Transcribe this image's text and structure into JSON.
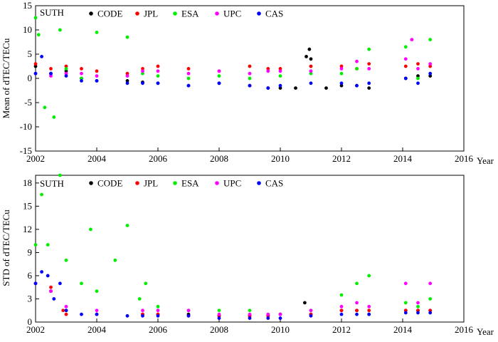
{
  "series_colors": {
    "CODE": "#000000",
    "JPL": "#ff0000",
    "ESA": "#00ee00",
    "UPC": "#ff00ff",
    "CAS": "#0000ff"
  },
  "chart_data": [
    {
      "type": "scatter",
      "station": "SUTH",
      "xlabel": "Year",
      "ylabel": "Mean of dTEC/TECu",
      "xlim": [
        2002,
        2016
      ],
      "ylim": [
        -15,
        15
      ],
      "x_ticks": [
        2002,
        2004,
        2006,
        2008,
        2010,
        2012,
        2014,
        2016
      ],
      "y_ticks": [
        -15,
        -10,
        -5,
        0,
        5,
        10,
        15
      ],
      "legend": [
        "CODE",
        "JPL",
        "ESA",
        "UPC",
        "CAS"
      ],
      "series": [
        {
          "name": "CODE",
          "x": [
            2002.0,
            2002.5,
            2003.0,
            2003.5,
            2004.0,
            2005.0,
            2005.5,
            2006.0,
            2007.0,
            2008.0,
            2009.0,
            2009.6,
            2010.0,
            2010.5,
            2010.85,
            2010.95,
            2011.0,
            2011.5,
            2012.0,
            2012.5,
            2012.9,
            2014.1,
            2014.5,
            2014.9
          ],
          "y": [
            2.5,
            1.0,
            1.5,
            0.0,
            -0.5,
            -0.5,
            -0.8,
            -1.0,
            -1.5,
            -1.0,
            -1.5,
            -2.0,
            -2.0,
            -2.0,
            4.5,
            6.0,
            4.0,
            -2.0,
            -1.5,
            -1.5,
            -2.0,
            0.0,
            0.5,
            0.5
          ]
        },
        {
          "name": "JPL",
          "x": [
            2002.0,
            2002.5,
            2003.0,
            2003.5,
            2004.0,
            2005.0,
            2005.5,
            2006.0,
            2007.0,
            2008.0,
            2009.0,
            2009.6,
            2010.0,
            2011.0,
            2012.0,
            2012.5,
            2012.9,
            2014.1,
            2014.5,
            2014.9
          ],
          "y": [
            3.0,
            2.0,
            2.5,
            2.0,
            1.5,
            1.0,
            2.0,
            2.5,
            2.0,
            1.5,
            2.5,
            2.0,
            2.0,
            2.5,
            2.5,
            2.0,
            3.0,
            2.5,
            3.0,
            2.5
          ]
        },
        {
          "name": "ESA",
          "x": [
            2002.0,
            2002.1,
            2002.3,
            2002.6,
            2002.8,
            2003.0,
            2003.5,
            2004.0,
            2005.0,
            2005.5,
            2006.0,
            2007.0,
            2008.0,
            2009.0,
            2010.0,
            2011.0,
            2012.0,
            2012.5,
            2012.9,
            2014.1,
            2014.5,
            2014.9
          ],
          "y": [
            12.5,
            9.0,
            -6.0,
            -8.0,
            10.0,
            2.0,
            0.0,
            9.5,
            8.5,
            1.0,
            0.5,
            0.0,
            0.5,
            0.0,
            0.5,
            1.0,
            1.0,
            2.0,
            6.0,
            6.5,
            0.0,
            8.0
          ]
        },
        {
          "name": "UPC",
          "x": [
            2002.0,
            2002.5,
            2003.0,
            2003.5,
            2004.0,
            2005.0,
            2005.5,
            2006.0,
            2007.0,
            2008.0,
            2009.0,
            2009.6,
            2010.0,
            2011.0,
            2012.0,
            2012.5,
            2012.9,
            2014.1,
            2014.3,
            2014.5,
            2014.9
          ],
          "y": [
            1.0,
            0.5,
            1.0,
            1.0,
            0.5,
            0.5,
            1.5,
            1.5,
            1.0,
            1.5,
            1.0,
            1.5,
            1.5,
            1.5,
            2.0,
            3.5,
            2.0,
            4.0,
            8.0,
            2.0,
            3.0
          ]
        },
        {
          "name": "CAS",
          "x": [
            2002.0,
            2002.2,
            2002.5,
            2003.0,
            2003.5,
            2004.0,
            2005.0,
            2005.5,
            2006.0,
            2007.0,
            2008.0,
            2009.0,
            2009.6,
            2010.0,
            2011.0,
            2012.0,
            2012.5,
            2012.9,
            2014.1,
            2014.5,
            2014.9
          ],
          "y": [
            1.0,
            4.5,
            1.0,
            0.5,
            -0.5,
            -0.5,
            -1.0,
            -1.0,
            -1.0,
            -1.5,
            -1.0,
            -1.5,
            -2.0,
            -1.5,
            -1.0,
            -1.0,
            -1.5,
            -1.0,
            0.0,
            -1.0,
            1.0
          ]
        }
      ]
    },
    {
      "type": "scatter",
      "station": "SUTH",
      "xlabel": "Year",
      "ylabel": "STD of dTEC/TECu",
      "xlim": [
        2002,
        2016
      ],
      "ylim": [
        0,
        19
      ],
      "x_ticks": [
        2002,
        2004,
        2006,
        2008,
        2010,
        2012,
        2014,
        2016
      ],
      "y_ticks": [
        0,
        3,
        6,
        9,
        12,
        15,
        18
      ],
      "legend": [
        "CODE",
        "JPL",
        "ESA",
        "UPC",
        "CAS"
      ],
      "series": [
        {
          "name": "CODE",
          "x": [
            2002.0,
            2002.5,
            2003.0,
            2004.0,
            2005.5,
            2006.0,
            2007.0,
            2008.0,
            2009.0,
            2009.6,
            2010.0,
            2010.8,
            2011.0,
            2012.0,
            2012.5,
            2012.9,
            2014.1,
            2014.5,
            2014.9
          ],
          "y": [
            5.0,
            4.0,
            1.5,
            1.0,
            1.0,
            1.0,
            1.0,
            0.8,
            0.8,
            0.8,
            1.0,
            2.5,
            1.0,
            1.5,
            1.5,
            1.0,
            1.5,
            1.5,
            1.5
          ]
        },
        {
          "name": "JPL",
          "x": [
            2002.0,
            2002.5,
            2002.9,
            2003.0,
            2004.0,
            2005.5,
            2006.0,
            2007.0,
            2008.0,
            2009.0,
            2009.6,
            2010.0,
            2011.0,
            2012.0,
            2012.5,
            2012.9,
            2014.1,
            2014.5,
            2014.9
          ],
          "y": [
            5.0,
            4.5,
            1.5,
            1.0,
            1.0,
            1.0,
            1.0,
            0.8,
            0.8,
            0.8,
            0.8,
            1.0,
            1.0,
            1.5,
            1.5,
            1.5,
            1.5,
            1.5,
            1.5
          ]
        },
        {
          "name": "ESA",
          "x": [
            2002.0,
            2002.2,
            2002.4,
            2002.8,
            2003.0,
            2003.5,
            2003.8,
            2004.0,
            2004.6,
            2005.0,
            2005.4,
            2005.6,
            2006.0,
            2007.0,
            2008.0,
            2009.0,
            2010.0,
            2011.0,
            2012.0,
            2012.5,
            2012.9,
            2014.1,
            2014.5,
            2014.9
          ],
          "y": [
            10.0,
            16.5,
            10.0,
            19.0,
            8.0,
            5.0,
            12.0,
            4.0,
            8.0,
            12.5,
            3.0,
            5.0,
            2.0,
            1.5,
            1.5,
            1.5,
            1.0,
            1.5,
            3.5,
            5.0,
            6.0,
            2.5,
            2.0,
            3.0
          ]
        },
        {
          "name": "UPC",
          "x": [
            2002.0,
            2002.5,
            2003.0,
            2004.0,
            2005.5,
            2006.0,
            2007.0,
            2008.0,
            2009.0,
            2009.6,
            2010.0,
            2011.0,
            2012.0,
            2012.5,
            2012.9,
            2014.1,
            2014.5,
            2014.9
          ],
          "y": [
            5.0,
            4.0,
            2.0,
            1.5,
            1.5,
            1.5,
            1.5,
            1.0,
            1.0,
            1.0,
            1.0,
            1.5,
            2.0,
            2.5,
            2.0,
            5.0,
            2.5,
            5.0
          ]
        },
        {
          "name": "CAS",
          "x": [
            2002.0,
            2002.2,
            2002.4,
            2002.6,
            2002.8,
            2003.0,
            2003.5,
            2004.0,
            2005.0,
            2005.5,
            2006.0,
            2007.0,
            2008.0,
            2009.0,
            2009.6,
            2010.0,
            2011.0,
            2012.0,
            2012.5,
            2012.9,
            2014.1,
            2014.5,
            2014.9
          ],
          "y": [
            5.0,
            6.5,
            6.0,
            3.0,
            5.0,
            1.5,
            1.0,
            1.0,
            0.8,
            0.8,
            0.8,
            0.8,
            0.5,
            0.5,
            0.5,
            0.5,
            0.8,
            1.0,
            1.0,
            1.0,
            1.2,
            1.2,
            1.2
          ]
        }
      ]
    }
  ]
}
